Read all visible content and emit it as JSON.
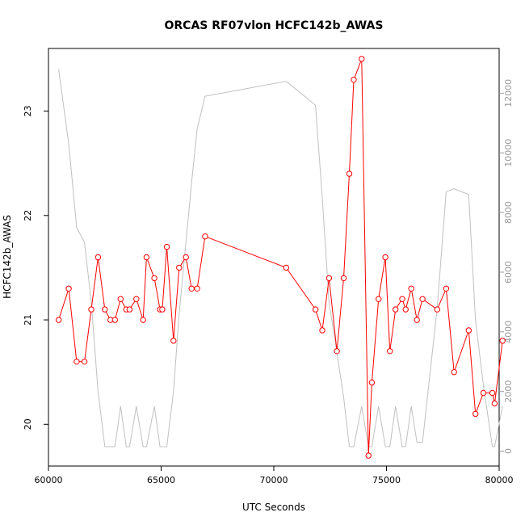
{
  "chart_data": {
    "type": "line",
    "title": "ORCAS RF07vlon HCFC142b_AWAS",
    "xlabel": "UTC Seconds",
    "ylabel": "HCFC142b_AWAS",
    "xlim": [
      60000,
      80000
    ],
    "ylim": [
      19.6,
      23.6
    ],
    "y2lim": [
      -500,
      13500
    ],
    "x_ticks": [
      60000,
      65000,
      70000,
      75000,
      80000
    ],
    "x_tick_labels": [
      "60000",
      "65000",
      "70000",
      "75000",
      "80000"
    ],
    "y_ticks": [
      20,
      21,
      22,
      23
    ],
    "y_tick_labels": [
      "20",
      "21",
      "22",
      "23"
    ],
    "y2_ticks": [
      0,
      2000,
      4000,
      6000,
      8000,
      10000,
      12000
    ],
    "y2_tick_labels": [
      "0",
      "2000",
      "4000",
      "6000",
      "8000",
      "10000",
      "12000"
    ],
    "series": [
      {
        "color": "#ff0000",
        "style": "line+open-circles",
        "axis": "left",
        "x": [
          60450,
          60900,
          61250,
          61600,
          61900,
          62200,
          62500,
          62750,
          62950,
          63200,
          63450,
          63600,
          63900,
          64200,
          64350,
          64700,
          64950,
          65050,
          65250,
          65550,
          65800,
          66100,
          66350,
          66600,
          66950,
          70550,
          71850,
          72150,
          72450,
          72800,
          73100,
          73350,
          73550,
          73900,
          74200,
          74350,
          74650,
          74950,
          75150,
          75400,
          75700,
          75850,
          76100,
          76350,
          76600,
          77250,
          77650,
          78000,
          78650,
          78950,
          79300,
          79700,
          79800,
          80150
        ],
        "y": [
          21.0,
          21.3,
          20.6,
          20.6,
          21.1,
          21.6,
          21.1,
          21.0,
          21.0,
          21.2,
          21.1,
          21.1,
          21.2,
          21.0,
          21.6,
          21.4,
          21.1,
          21.1,
          21.7,
          20.8,
          21.5,
          21.6,
          21.3,
          21.3,
          21.8,
          21.5,
          21.1,
          20.9,
          21.4,
          20.7,
          21.4,
          22.4,
          23.3,
          23.5,
          19.7,
          20.4,
          21.2,
          21.6,
          20.7,
          21.1,
          21.2,
          21.1,
          21.3,
          21.0,
          21.2,
          21.1,
          21.3,
          20.5,
          20.9,
          20.1,
          20.3,
          20.3,
          20.2,
          20.8
        ]
      },
      {
        "color": "#c0c0c0",
        "style": "line",
        "axis": "right",
        "x": [
          60450,
          60900,
          61250,
          61600,
          61900,
          62200,
          62500,
          62750,
          62950,
          63200,
          63450,
          63600,
          63900,
          64200,
          64350,
          64700,
          64950,
          65050,
          65250,
          65550,
          65800,
          66100,
          66350,
          66600,
          66950,
          70550,
          71850,
          72150,
          72450,
          72800,
          73100,
          73350,
          73550,
          73900,
          74200,
          74350,
          74650,
          74950,
          75150,
          75400,
          75700,
          75850,
          76100,
          76350,
          76600,
          77250,
          77650,
          78000,
          78650,
          78950,
          79300,
          79700,
          79800,
          80150
        ],
        "y": [
          12800,
          10300,
          7500,
          7000,
          5000,
          2000,
          150,
          150,
          150,
          1500,
          150,
          150,
          1500,
          150,
          150,
          1500,
          150,
          150,
          150,
          2000,
          4600,
          7000,
          9000,
          10800,
          11900,
          12400,
          11600,
          8500,
          5000,
          3300,
          1800,
          150,
          150,
          1500,
          150,
          150,
          1500,
          150,
          150,
          1500,
          150,
          150,
          1500,
          300,
          300,
          4800,
          8700,
          8800,
          8600,
          4400,
          2200,
          150,
          150,
          1500
        ]
      }
    ]
  }
}
